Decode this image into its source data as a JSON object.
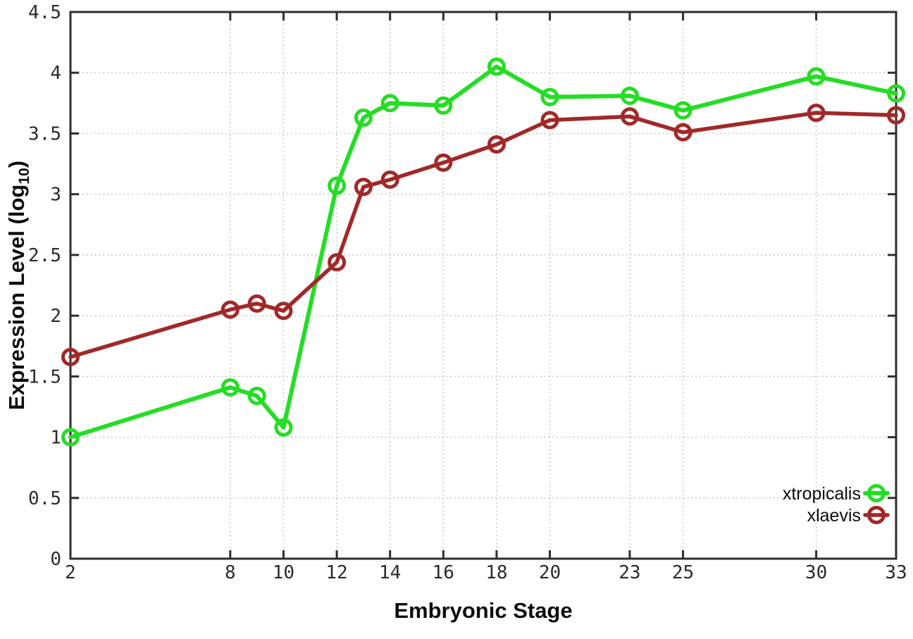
{
  "chart_data": {
    "type": "line",
    "title": "",
    "xlabel": "Embryonic Stage",
    "ylabel": "Expression Level (log10)",
    "ylabel_parts": {
      "main": "Expression Level (log",
      "sub": "10",
      "end": ")"
    },
    "x": [
      2,
      8,
      9,
      10,
      12,
      13,
      14,
      16,
      18,
      20,
      23,
      25,
      30,
      33
    ],
    "series": [
      {
        "name": "xtropicalis",
        "color": "#24dd24",
        "line_width": 6,
        "values": [
          1.0,
          1.41,
          1.34,
          1.08,
          3.07,
          3.63,
          3.75,
          3.73,
          4.05,
          3.8,
          3.81,
          3.69,
          3.97,
          3.83
        ]
      },
      {
        "name": "xlaevis",
        "color": "#a22828",
        "line_width": 5.5,
        "values": [
          1.66,
          2.05,
          2.1,
          2.04,
          2.44,
          3.06,
          3.12,
          3.26,
          3.41,
          3.61,
          3.64,
          3.51,
          3.67,
          3.65
        ]
      }
    ],
    "xticks": [
      2,
      8,
      10,
      12,
      14,
      16,
      18,
      20,
      23,
      25,
      30,
      33
    ],
    "yticks": [
      0,
      0.5,
      1,
      1.5,
      2,
      2.5,
      3,
      3.5,
      4,
      4.5
    ],
    "xlim": [
      2,
      33
    ],
    "ylim": [
      0,
      4.5
    ],
    "grid": true,
    "legend_position": "bottom-right",
    "styles": {
      "background": "#ffffff",
      "axis_color": "#2e2e2e",
      "grid_color": "#bdbdbd",
      "text_color": "#2b2b2b"
    }
  }
}
